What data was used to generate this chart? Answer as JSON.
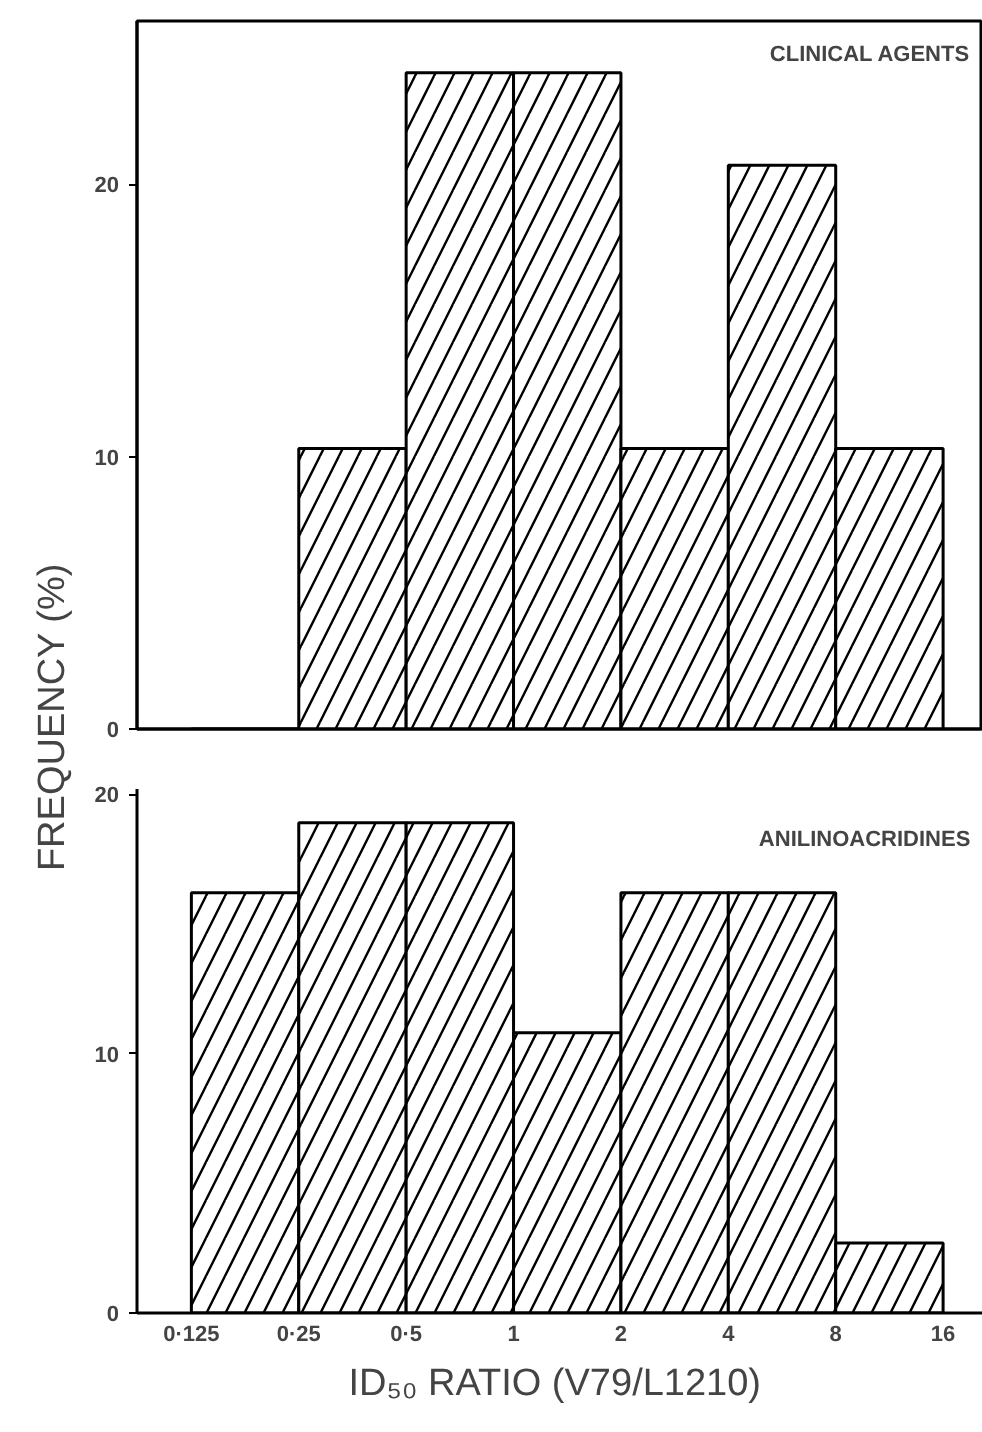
{
  "chart_data": [
    {
      "type": "histogram",
      "ylabel": "FREQUENCY (%)",
      "annotations": [
        "CLINICAL AGENTS"
      ],
      "bins": [
        0.125,
        0.25,
        0.5,
        1,
        2,
        4,
        8,
        16
      ],
      "values": [
        0,
        10.3,
        24.1,
        24.1,
        10.3,
        20.7,
        10.3
      ],
      "color": "#000000",
      "log": "x",
      "xlim": [
        0.088,
        20.7
      ],
      "ylim": [
        0,
        26
      ],
      "yticks": [
        0,
        10,
        20
      ],
      "tick_labels": "y",
      "grid": false
    },
    {
      "type": "histogram",
      "xlabel": "ID₅₀ RATIO  (V79/L1210)",
      "annotations": [
        "ANILINOACRIDINES"
      ],
      "bins": [
        0.125,
        0.25,
        0.5,
        1,
        2,
        4,
        8,
        16
      ],
      "values": [
        16.2,
        18.9,
        18.9,
        10.8,
        16.2,
        16.2,
        2.7
      ],
      "color": "#000000",
      "log": "x",
      "xlim": [
        0.088,
        20.7
      ],
      "ylim": [
        0,
        20.2
      ],
      "yticks": [
        0,
        10,
        20
      ],
      "xticks": [
        {
          "value": 0.125,
          "label": "0·125"
        },
        {
          "value": 0.25,
          "label": "0·25"
        },
        {
          "value": 0.5,
          "label": "0·5"
        },
        1,
        2,
        4,
        8,
        16
      ],
      "grid": false
    }
  ]
}
